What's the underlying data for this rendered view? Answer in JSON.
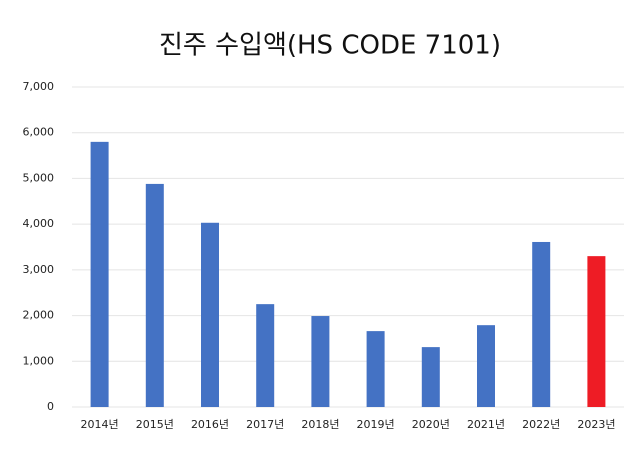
{
  "chart_data": {
    "type": "bar",
    "title": "진주 수입액(HS CODE 7101)",
    "categories": [
      "2014년",
      "2015년",
      "2016년",
      "2017년",
      "2018년",
      "2019년",
      "2020년",
      "2021년",
      "2022년",
      "2023년"
    ],
    "values": [
      5800,
      4880,
      4030,
      2250,
      1990,
      1660,
      1310,
      1790,
      3610,
      3300
    ],
    "colors": [
      "#4472c4",
      "#4472c4",
      "#4472c4",
      "#4472c4",
      "#4472c4",
      "#4472c4",
      "#4472c4",
      "#4472c4",
      "#4472c4",
      "#ee1c25"
    ],
    "ylim": [
      0,
      7000
    ],
    "yticks": [
      0,
      {
        "value": 1000,
        "label": "1,000"
      },
      {
        "value": 2000,
        "label": "2,000"
      },
      {
        "value": 3000,
        "label": "3,000"
      },
      {
        "value": 4000,
        "label": "4,000"
      },
      {
        "value": 5000,
        "label": "5,000"
      },
      {
        "value": 6000,
        "label": "6,000"
      },
      {
        "value": 7000,
        "label": "7,000"
      }
    ],
    "grid": true
  }
}
